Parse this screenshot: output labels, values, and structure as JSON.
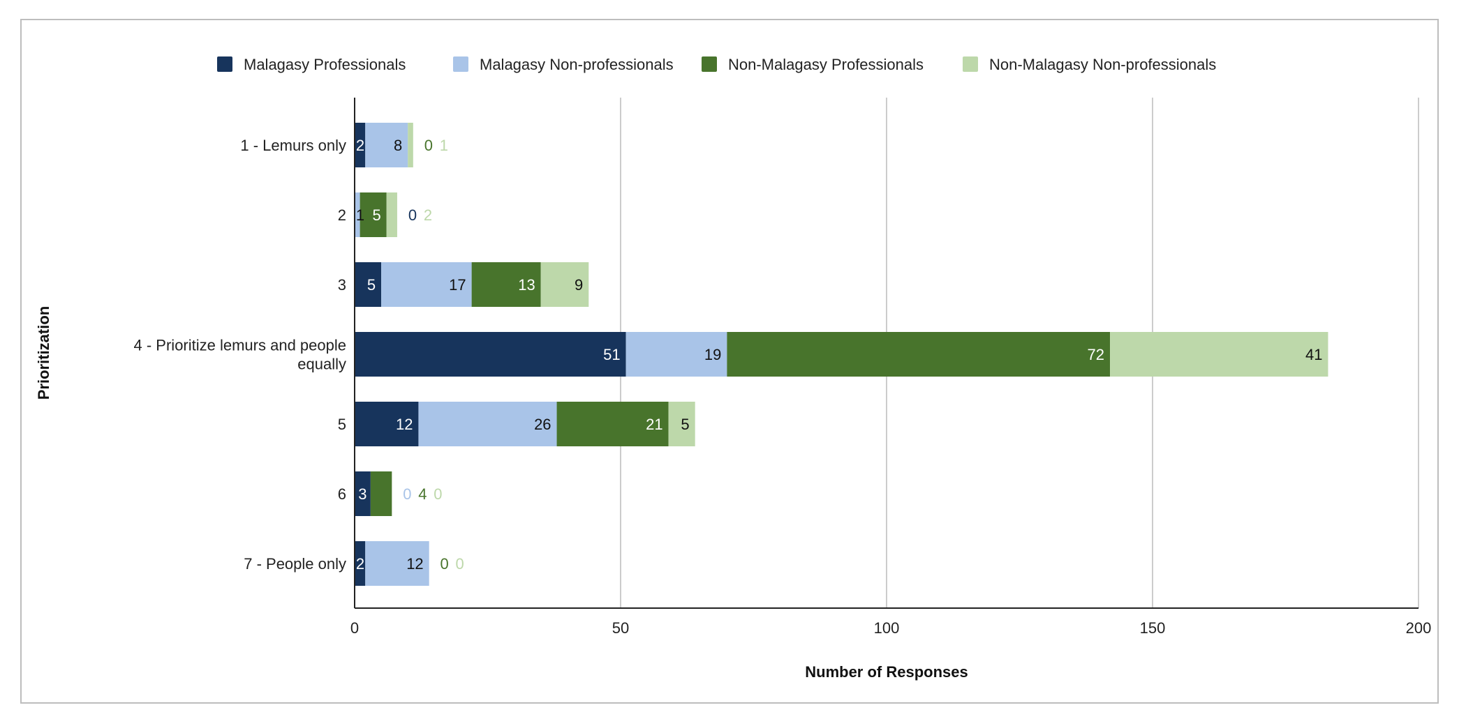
{
  "chart_data": {
    "type": "bar",
    "orientation": "horizontal",
    "stacked": true,
    "categories": [
      "1 - Lemurs only",
      "2",
      "3",
      "4 - Prioritize lemurs and people equally",
      "5",
      "6",
      "7 - People only"
    ],
    "series": [
      {
        "name": "Malagasy Professionals",
        "color": "#17345c",
        "label_color": "#ffffff",
        "values": [
          2,
          0,
          5,
          51,
          12,
          3,
          2
        ]
      },
      {
        "name": "Malagasy Non-professionals",
        "color": "#a9c4e8",
        "label_color": "#111111",
        "values": [
          8,
          1,
          17,
          19,
          26,
          0,
          12
        ]
      },
      {
        "name": "Non-Malagasy Professionals",
        "color": "#48742c",
        "label_color": "#ffffff",
        "values": [
          0,
          5,
          13,
          72,
          21,
          4,
          0
        ]
      },
      {
        "name": "Non-Malagasy Non-professionals",
        "color": "#bdd8aa",
        "label_color": "#111111",
        "values": [
          1,
          2,
          9,
          41,
          5,
          0,
          0
        ]
      }
    ],
    "xlabel": "Number of Responses",
    "ylabel": "Prioritization",
    "xlim": [
      0,
      200
    ],
    "xticks": [
      "0",
      "50",
      "100",
      "150",
      "200"
    ],
    "grid": "vertical",
    "legend_position": "top"
  }
}
